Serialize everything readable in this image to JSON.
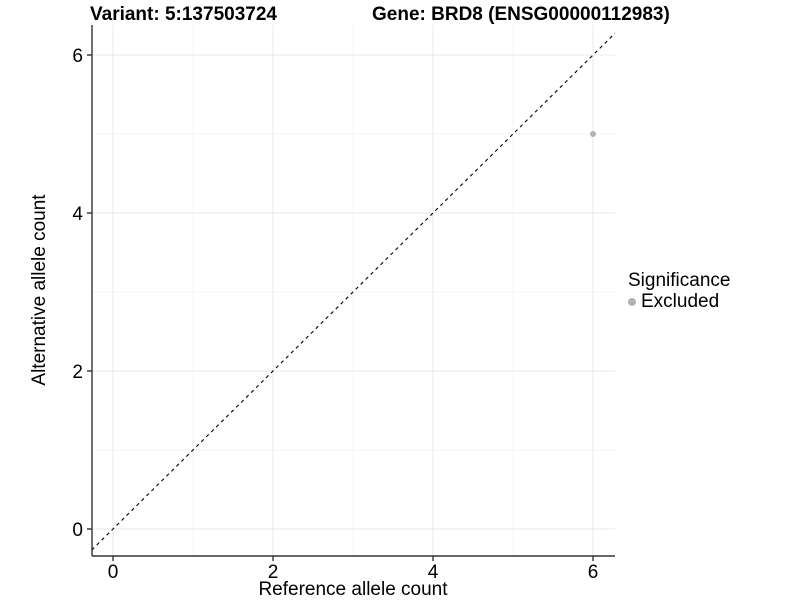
{
  "chart_data": {
    "type": "scatter",
    "titles": {
      "left": "Variant: 5:137503724",
      "right": "Gene: BRD8 (ENSG00000112983)"
    },
    "xlabel": "Reference allele count",
    "ylabel": "Alternative allele count",
    "xlim": [
      -0.2625,
      6.275
    ],
    "ylim": [
      -0.342,
      6.38
    ],
    "xticks": [
      0,
      2,
      4,
      6
    ],
    "yticks": [
      0,
      2,
      4,
      6
    ],
    "minor_xticks": [
      1,
      3,
      5
    ],
    "minor_yticks": [
      1,
      3,
      5
    ],
    "grid": true,
    "series": [
      {
        "name": "Excluded",
        "marker_color": "#b3b3b3",
        "marker_radius": 3,
        "points": [
          {
            "x": 6,
            "y": 5
          }
        ]
      }
    ],
    "reference_line": {
      "type": "identity",
      "slope": 1,
      "intercept": 0,
      "style": "dashed",
      "color": "#000000"
    },
    "legend": {
      "title": "Significance",
      "position": "right",
      "entries": [
        {
          "label": "Excluded",
          "marker_color": "#b3b3b3"
        }
      ]
    },
    "colors": {
      "grid_major": "#e9e9e9",
      "grid_minor": "#f4f4f4",
      "axis_line": "#333333",
      "tick": "#333333",
      "text": "#000000",
      "background": "#ffffff"
    }
  }
}
